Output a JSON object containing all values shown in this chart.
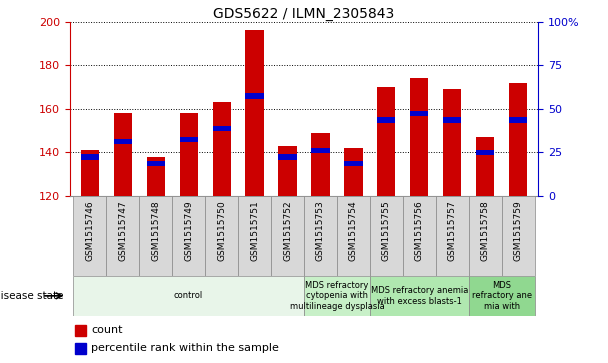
{
  "title": "GDS5622 / ILMN_2305843",
  "samples": [
    "GSM1515746",
    "GSM1515747",
    "GSM1515748",
    "GSM1515749",
    "GSM1515750",
    "GSM1515751",
    "GSM1515752",
    "GSM1515753",
    "GSM1515754",
    "GSM1515755",
    "GSM1515756",
    "GSM1515757",
    "GSM1515758",
    "GSM1515759"
  ],
  "counts": [
    141,
    158,
    138,
    158,
    163,
    196,
    143,
    149,
    142,
    170,
    174,
    169,
    147,
    172
  ],
  "percentile_vals": [
    138,
    145,
    135,
    146,
    151,
    166,
    138,
    141,
    135,
    155,
    158,
    155,
    140,
    155
  ],
  "y_min": 120,
  "y_max": 200,
  "bar_color": "#cc0000",
  "blue_color": "#0000cc",
  "disease_groups": [
    {
      "label": "control",
      "start": 0,
      "end": 7,
      "color": "#e8f5e9"
    },
    {
      "label": "MDS refractory\ncytopenia with\nmultilineage dysplasia",
      "start": 7,
      "end": 9,
      "color": "#c8f0c8"
    },
    {
      "label": "MDS refractory anemia\nwith excess blasts-1",
      "start": 9,
      "end": 12,
      "color": "#b0e8b0"
    },
    {
      "label": "MDS\nrefractory ane\nmia with",
      "start": 12,
      "end": 14,
      "color": "#90d890"
    }
  ],
  "disease_state_label": "disease state",
  "legend_count": "count",
  "legend_pct": "percentile rank within the sample",
  "yticks_left": [
    120,
    140,
    160,
    180,
    200
  ],
  "yticks_right": [
    0,
    25,
    50,
    75,
    100
  ],
  "sample_box_color": "#d8d8d8",
  "grid_line_style": "dotted"
}
